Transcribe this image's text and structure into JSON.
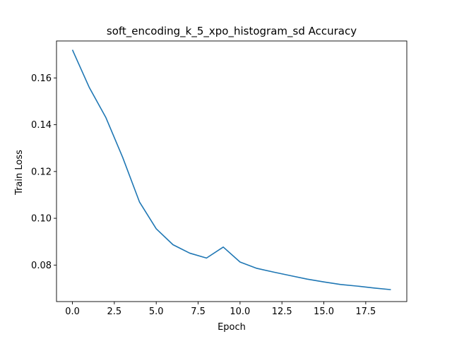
{
  "chart_data": {
    "type": "line",
    "title": "soft_encoding_k_5_xpo_histogram_sd Accuracy",
    "xlabel": "Epoch",
    "ylabel": "Train Loss",
    "grid": false,
    "series_color": "#1f77b4",
    "x": [
      0,
      1,
      2,
      3,
      4,
      5,
      6,
      7,
      8,
      9,
      10,
      11,
      12,
      13,
      14,
      15,
      16,
      17,
      18,
      19
    ],
    "series": [
      {
        "values": [
          0.172,
          0.156,
          0.143,
          0.126,
          0.107,
          0.0955,
          0.0887,
          0.0851,
          0.083,
          0.0877,
          0.0813,
          0.0786,
          0.077,
          0.0755,
          0.074,
          0.0728,
          0.0717,
          0.071,
          0.0702,
          0.0695
        ]
      }
    ],
    "xlim": [
      -0.95,
      19.95
    ],
    "ylim": [
      0.0644,
      0.1758
    ],
    "xticks": [
      "0.0",
      "2.5",
      "5.0",
      "7.5",
      "10.0",
      "12.5",
      "15.0",
      "17.5"
    ],
    "yticks": [
      "0.08",
      "0.10",
      "0.12",
      "0.14",
      "0.16"
    ]
  }
}
